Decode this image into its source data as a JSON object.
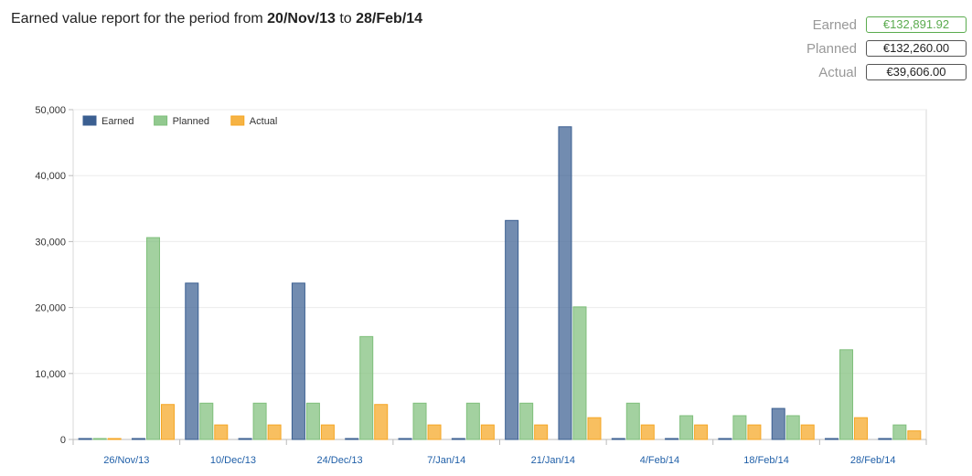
{
  "header": {
    "title_prefix": "Earned value report for the period from",
    "from_date": "20/Nov/13",
    "to_word": "to",
    "to_date": "28/Feb/14"
  },
  "summary": [
    {
      "label": "Earned",
      "value": "€132,891.92",
      "border_color": "#5aab4e",
      "text_color": "#5aab4e"
    },
    {
      "label": "Planned",
      "value": "€132,260.00",
      "border_color": "#555555",
      "text_color": "#222222"
    },
    {
      "label": "Actual",
      "value": "€39,606.00",
      "border_color": "#555555",
      "text_color": "#222222"
    }
  ],
  "chart_data": {
    "type": "bar",
    "ylim": [
      0,
      50000
    ],
    "y_ticks": [
      "0",
      "10,000",
      "20,000",
      "30,000",
      "40,000",
      "50,000"
    ],
    "y_tick_values": [
      0,
      10000,
      20000,
      30000,
      40000,
      50000
    ],
    "x_tick_labels": [
      "26/Nov/13",
      "10/Dec/13",
      "24/Dec/13",
      "7/Jan/14",
      "21/Jan/14",
      "4/Feb/14",
      "18/Feb/14",
      "28/Feb/14"
    ],
    "x_tick_groups": [
      1,
      3,
      5,
      7,
      9,
      11,
      13,
      15
    ],
    "group_count": 16,
    "grid": true,
    "legend_position": "top-left",
    "series": [
      {
        "name": "Earned",
        "color": "#3b5f91",
        "values": [
          0,
          0,
          23700,
          0,
          23700,
          0,
          0,
          0,
          33200,
          47400,
          0,
          0,
          0,
          4700,
          0,
          0
        ]
      },
      {
        "name": "Planned",
        "color": "#7fbf7b",
        "values": [
          0,
          30600,
          5500,
          5500,
          5500,
          15600,
          5500,
          5500,
          5500,
          20100,
          5500,
          3600,
          3600,
          3600,
          13600,
          2200
        ]
      },
      {
        "name": "Actual",
        "color": "#f5a623",
        "values": [
          0,
          5300,
          2200,
          2200,
          2200,
          5300,
          2200,
          2200,
          2200,
          3300,
          2200,
          2200,
          2200,
          2200,
          3300,
          1300
        ]
      }
    ]
  }
}
